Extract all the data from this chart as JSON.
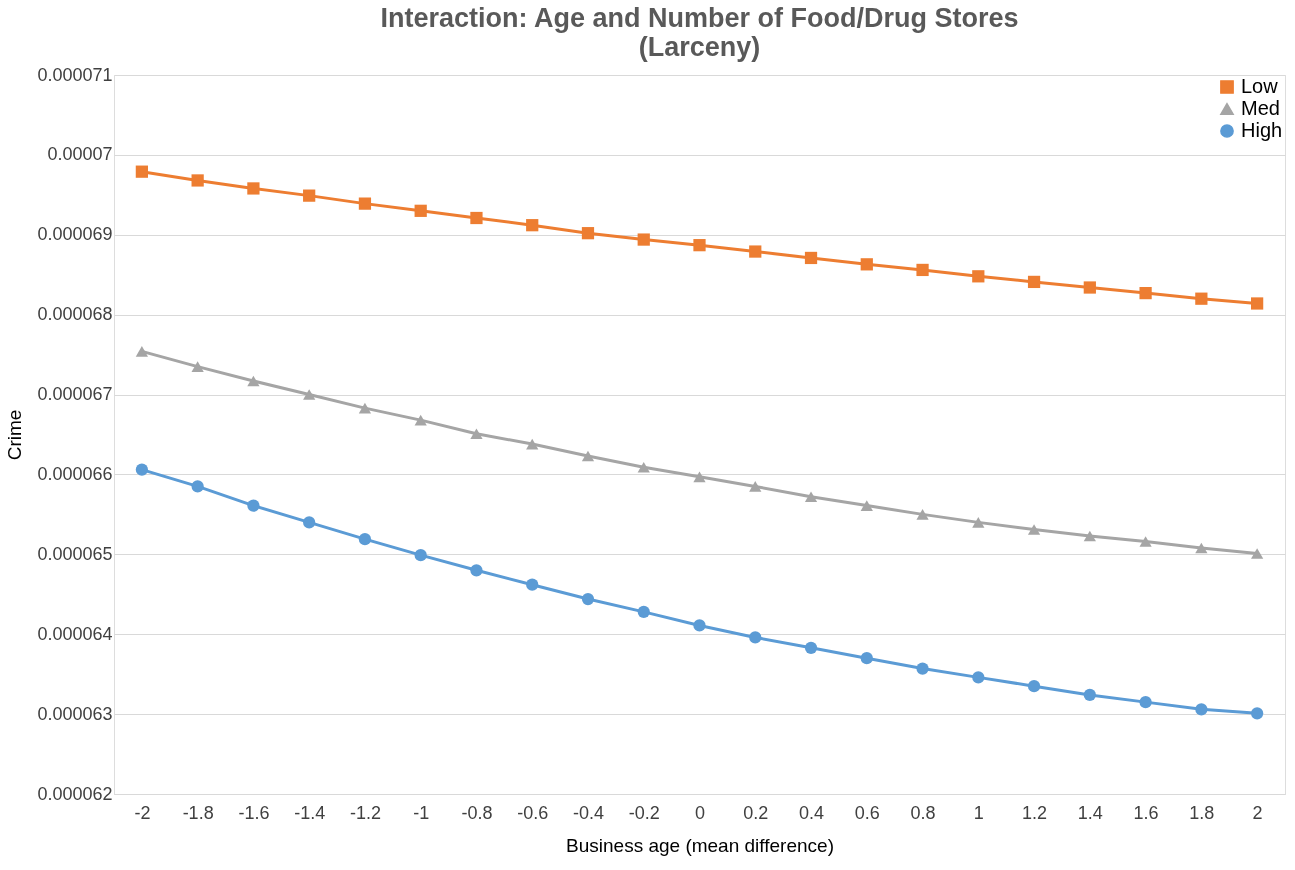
{
  "chart_data": {
    "type": "line",
    "title": "Interaction: Age and Number of Food/Drug Stores (Larceny)",
    "xlabel": "Business age (mean difference)",
    "ylabel": "Crime",
    "categories": [
      "-2",
      "-1.8",
      "-1.6",
      "-1.4",
      "-1.2",
      "-1",
      "-0.8",
      "-0.6",
      "-0.4",
      "-0.2",
      "0",
      "0.2",
      "0.4",
      "0.6",
      "0.8",
      "1",
      "1.2",
      "1.4",
      "1.6",
      "1.8",
      "2"
    ],
    "series": [
      {
        "name": "Low",
        "color": "#ed7d31",
        "marker": "square",
        "values": [
          6.979e-05,
          6.968e-05,
          6.958e-05,
          6.949e-05,
          6.939e-05,
          6.93e-05,
          6.921e-05,
          6.912e-05,
          6.902e-05,
          6.894e-05,
          6.887e-05,
          6.879e-05,
          6.871e-05,
          6.863e-05,
          6.856e-05,
          6.848e-05,
          6.841e-05,
          6.834e-05,
          6.827e-05,
          6.82e-05,
          6.814e-05
        ]
      },
      {
        "name": "Med",
        "color": "#a5a5a5",
        "marker": "triangle",
        "values": [
          6.754e-05,
          6.735e-05,
          6.717e-05,
          6.7e-05,
          6.683e-05,
          6.668e-05,
          6.651e-05,
          6.638e-05,
          6.623e-05,
          6.609e-05,
          6.597e-05,
          6.585e-05,
          6.572e-05,
          6.561e-05,
          6.55e-05,
          6.54e-05,
          6.531e-05,
          6.523e-05,
          6.516e-05,
          6.508e-05,
          6.501e-05
        ]
      },
      {
        "name": "High",
        "color": "#5b9bd5",
        "marker": "circle",
        "values": [
          6.606e-05,
          6.585e-05,
          6.561e-05,
          6.54e-05,
          6.519e-05,
          6.499e-05,
          6.48e-05,
          6.462e-05,
          6.444e-05,
          6.428e-05,
          6.411e-05,
          6.396e-05,
          6.383e-05,
          6.37e-05,
          6.357e-05,
          6.346e-05,
          6.335e-05,
          6.324e-05,
          6.315e-05,
          6.306e-05,
          6.301e-05
        ]
      }
    ],
    "ylim": [
      6.2e-05,
      7.1e-05
    ],
    "yticks": [
      {
        "value": 6.2e-05,
        "label": "0.000062"
      },
      {
        "value": 6.3e-05,
        "label": "0.000063"
      },
      {
        "value": 6.4e-05,
        "label": "0.000064"
      },
      {
        "value": 6.5e-05,
        "label": "0.000065"
      },
      {
        "value": 6.6e-05,
        "label": "0.000066"
      },
      {
        "value": 6.7e-05,
        "label": "0.000067"
      },
      {
        "value": 6.8e-05,
        "label": "0.000068"
      },
      {
        "value": 6.9e-05,
        "label": "0.000069"
      },
      {
        "value": 7e-05,
        "label": "0.00007"
      },
      {
        "value": 7.1e-05,
        "label": "0.000071"
      }
    ],
    "grid": "y",
    "legend": "top right",
    "line_style": "solid"
  }
}
